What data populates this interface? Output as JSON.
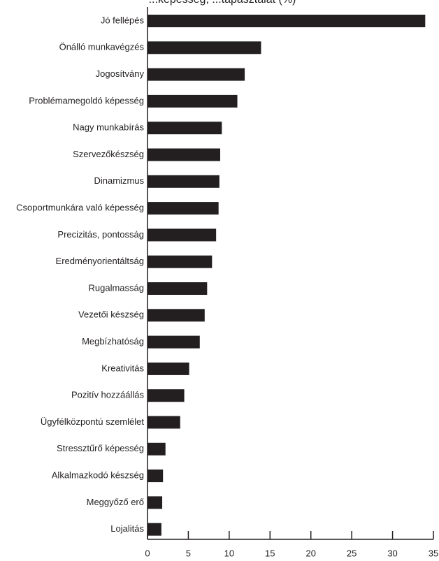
{
  "chart_data": {
    "type": "bar",
    "orientation": "horizontal",
    "title": "...képesség, ...tapasztalat (%)",
    "categories": [
      "Jó fellépés",
      "Önálló munkavégzés",
      "Jogosítvány",
      "Problémamegoldó képesség",
      "Nagy munkabírás",
      "Szervezőkészség",
      "Dinamizmus",
      "Csoportmunkára való képesség",
      "Precizitás, pontosság",
      "Eredményorientáltság",
      "Rugalmasság",
      "Vezetői készség",
      "Megbízhatóság",
      "Kreativitás",
      "Pozitív hozzáállás",
      "Ügyfélközpontú szemlélet",
      "Stressztűrő képesség",
      "Alkalmazkodó készség",
      "Meggyőző erő",
      "Lojalitás"
    ],
    "values": [
      34,
      13.9,
      11.9,
      11,
      9.1,
      8.9,
      8.8,
      8.7,
      8.4,
      7.9,
      7.3,
      7,
      6.4,
      5.1,
      4.5,
      4,
      2.2,
      1.9,
      1.8,
      1.7
    ],
    "xlim": [
      0,
      35
    ],
    "xticks": [
      "0",
      "5",
      "10",
      "15",
      "20",
      "25",
      "30",
      "35"
    ],
    "bar_color": "#231f20",
    "grid": false,
    "xlabel": "",
    "ylabel": ""
  }
}
